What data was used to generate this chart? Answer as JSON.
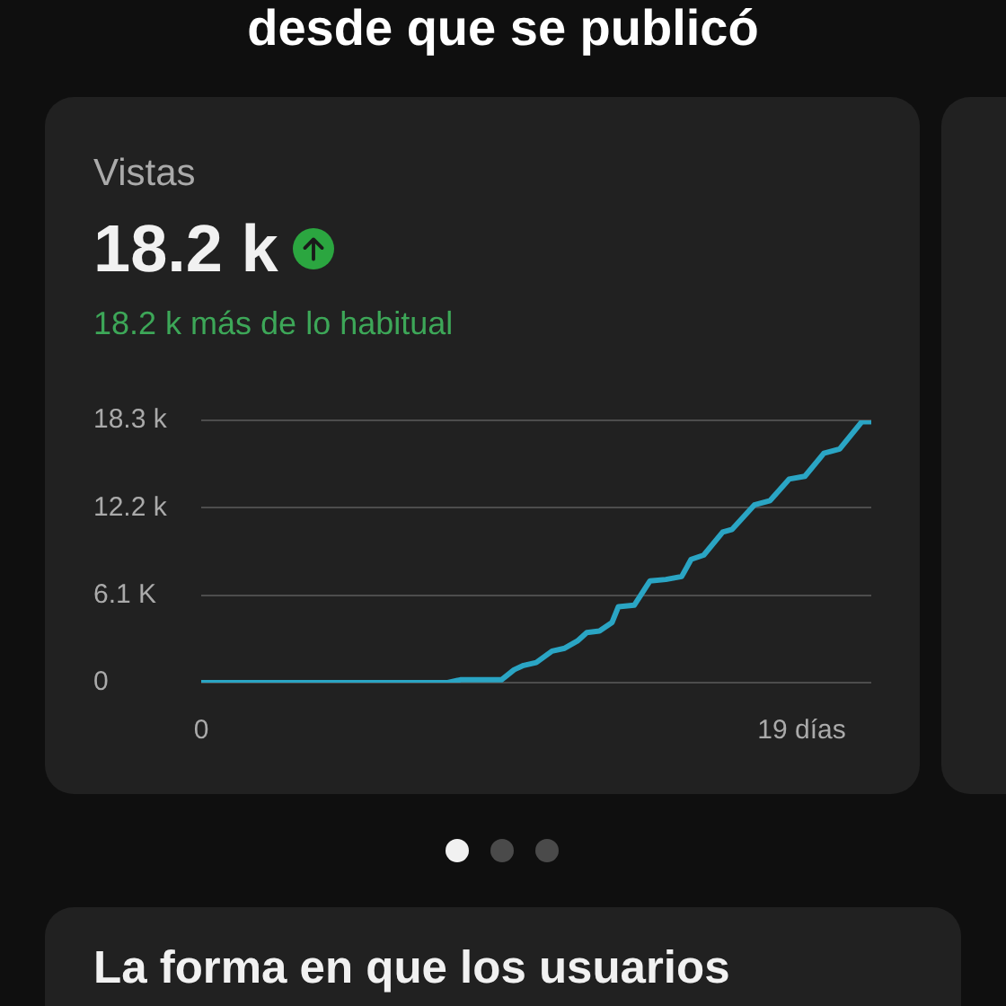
{
  "chart_data": {
    "type": "line",
    "title": "Vistas",
    "subtitle": "18.2 k más de lo habitual",
    "annotations": [
      "desde que se publicó",
      "18.2 k",
      "La forma en que los usuarios"
    ],
    "x": [
      0,
      7.8,
      8.2,
      9.5,
      9.9,
      10.2,
      10.6,
      11.1,
      11.5,
      11.9,
      12.2,
      12.6,
      13,
      13.2,
      13.7,
      14.2,
      14.7,
      15.2,
      15.5,
      15.9,
      16.5,
      16.8,
      17.5,
      18,
      18.6,
      19.1,
      19.7,
      20.2,
      20.9,
      21.2
    ],
    "values": [
      0,
      0,
      200,
      200,
      900,
      1200,
      1400,
      2200,
      2400,
      2900,
      3500,
      3600,
      4200,
      5300,
      5400,
      7100,
      7200,
      7400,
      8600,
      8900,
      10500,
      10700,
      12400,
      12700,
      14200,
      14400,
      16000,
      16300,
      18200,
      18200
    ],
    "color": "#2aa5c4",
    "xlim": [
      0,
      21.2
    ],
    "xticks": [
      0,
      {
        "value": 19,
        "label": "19 días"
      }
    ],
    "ylim": [
      0,
      18300
    ],
    "yticks": [
      0,
      {
        "value": 6100,
        "label": "6.1 K"
      },
      {
        "value": 12200,
        "label": "12.2 k"
      },
      {
        "value": 18300,
        "label": "18.3 k"
      }
    ],
    "grid": "y"
  }
}
